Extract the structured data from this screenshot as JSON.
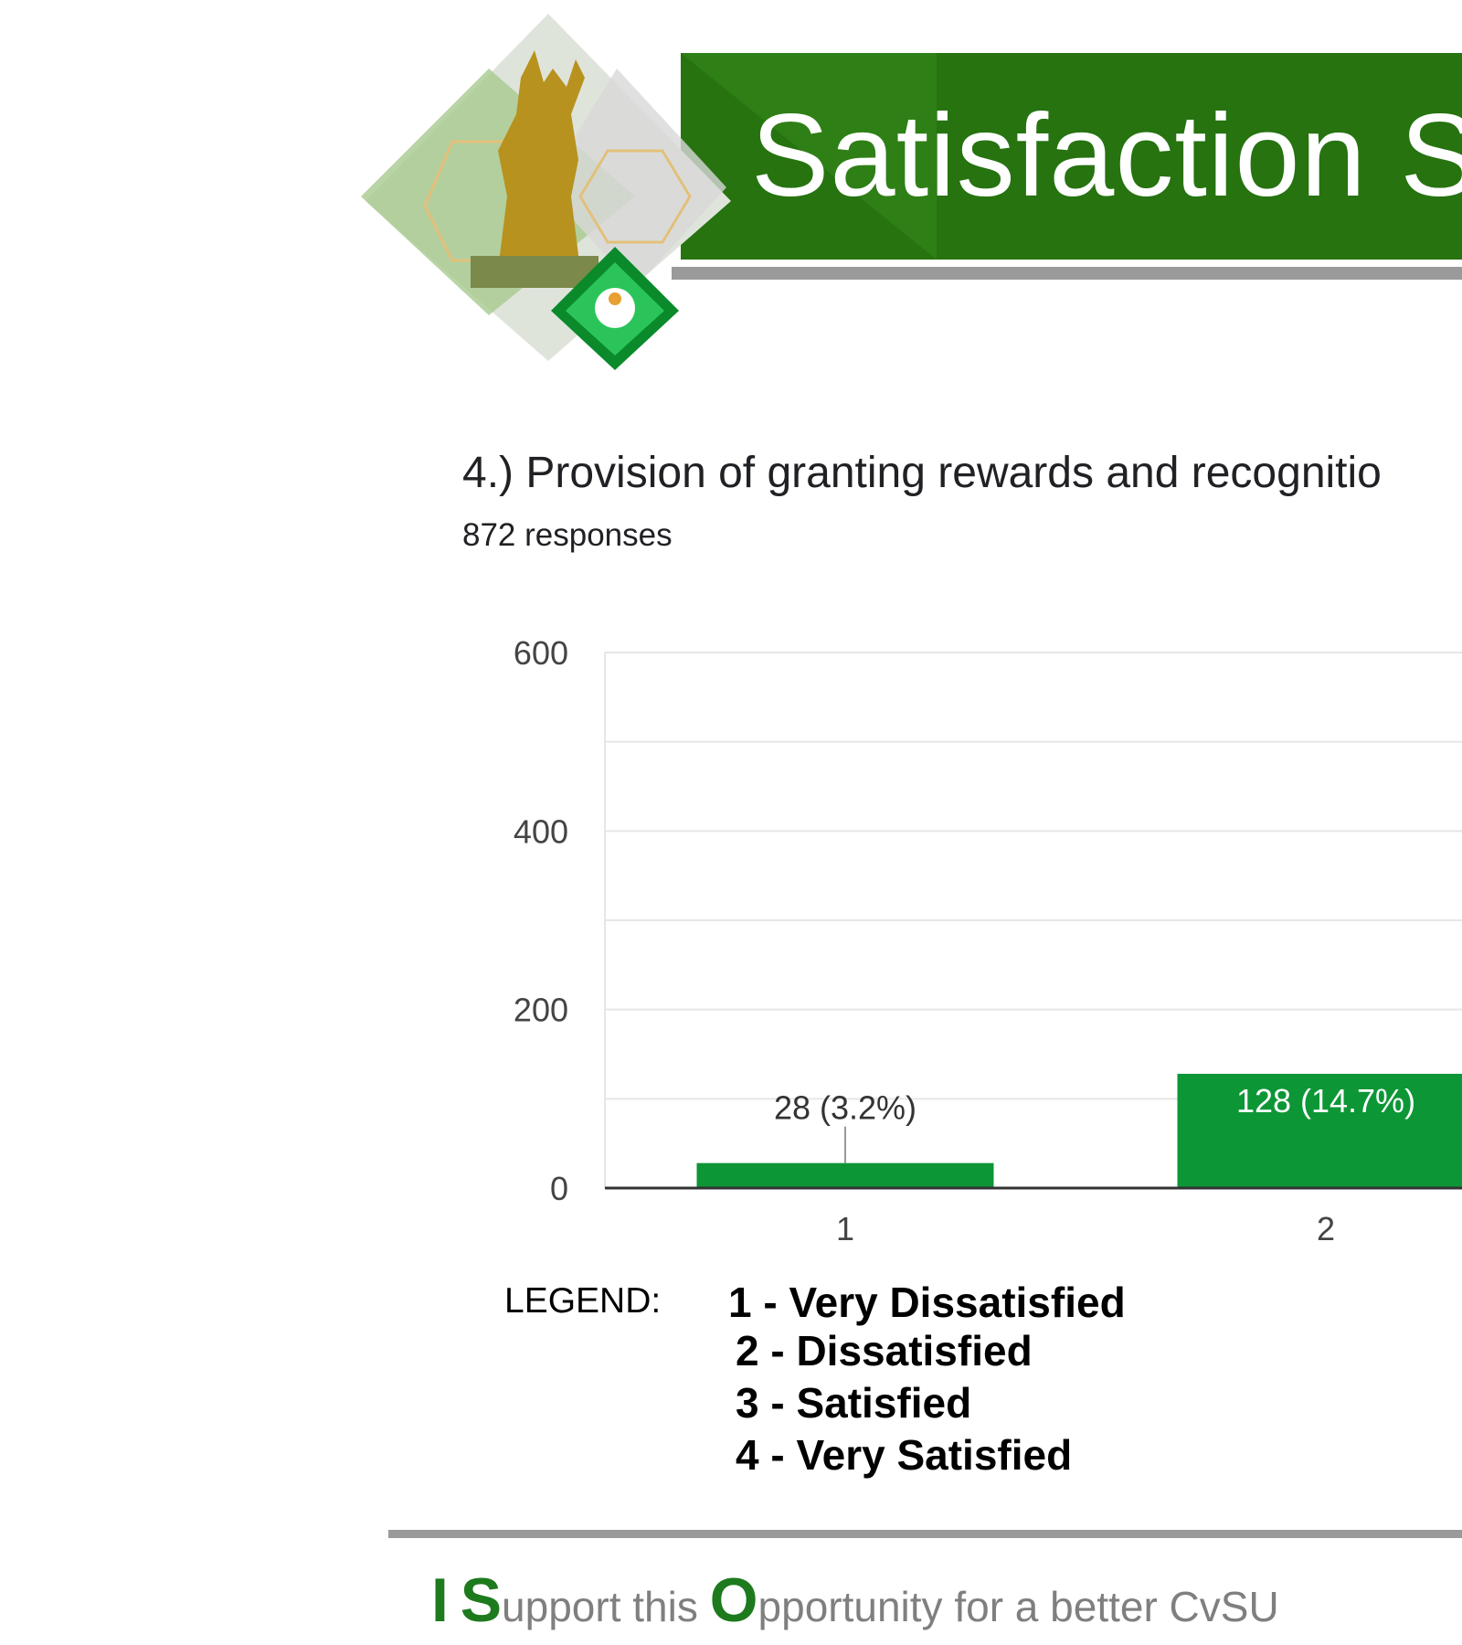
{
  "header": {
    "title": "Satisfaction S"
  },
  "question": {
    "title": "4.) Provision of granting rewards and recognitio",
    "responses": "872 responses"
  },
  "legend": {
    "label": "LEGEND:",
    "items": [
      "1  -  Very Dissatisfied",
      "2 -  Dissatisfied",
      "3 -  Satisfied",
      "4 - Very Satisfied"
    ]
  },
  "footer": {
    "i": "I",
    "s": "S",
    "upport": "upport this ",
    "o": "O",
    "rest": "pportunity for a better CvSU"
  },
  "colors": {
    "bar": "#0d9636",
    "banner": "#267310",
    "footer_green": "#1d7a1d"
  },
  "chart_data": {
    "type": "bar",
    "categories": [
      "1",
      "2"
    ],
    "values": [
      28,
      128
    ],
    "data_labels": [
      "28 (3.2%)",
      "128 (14.7%)"
    ],
    "ylim": [
      0,
      600
    ],
    "yticks": [
      "0",
      "200",
      "400",
      "600"
    ],
    "grid": true
  }
}
